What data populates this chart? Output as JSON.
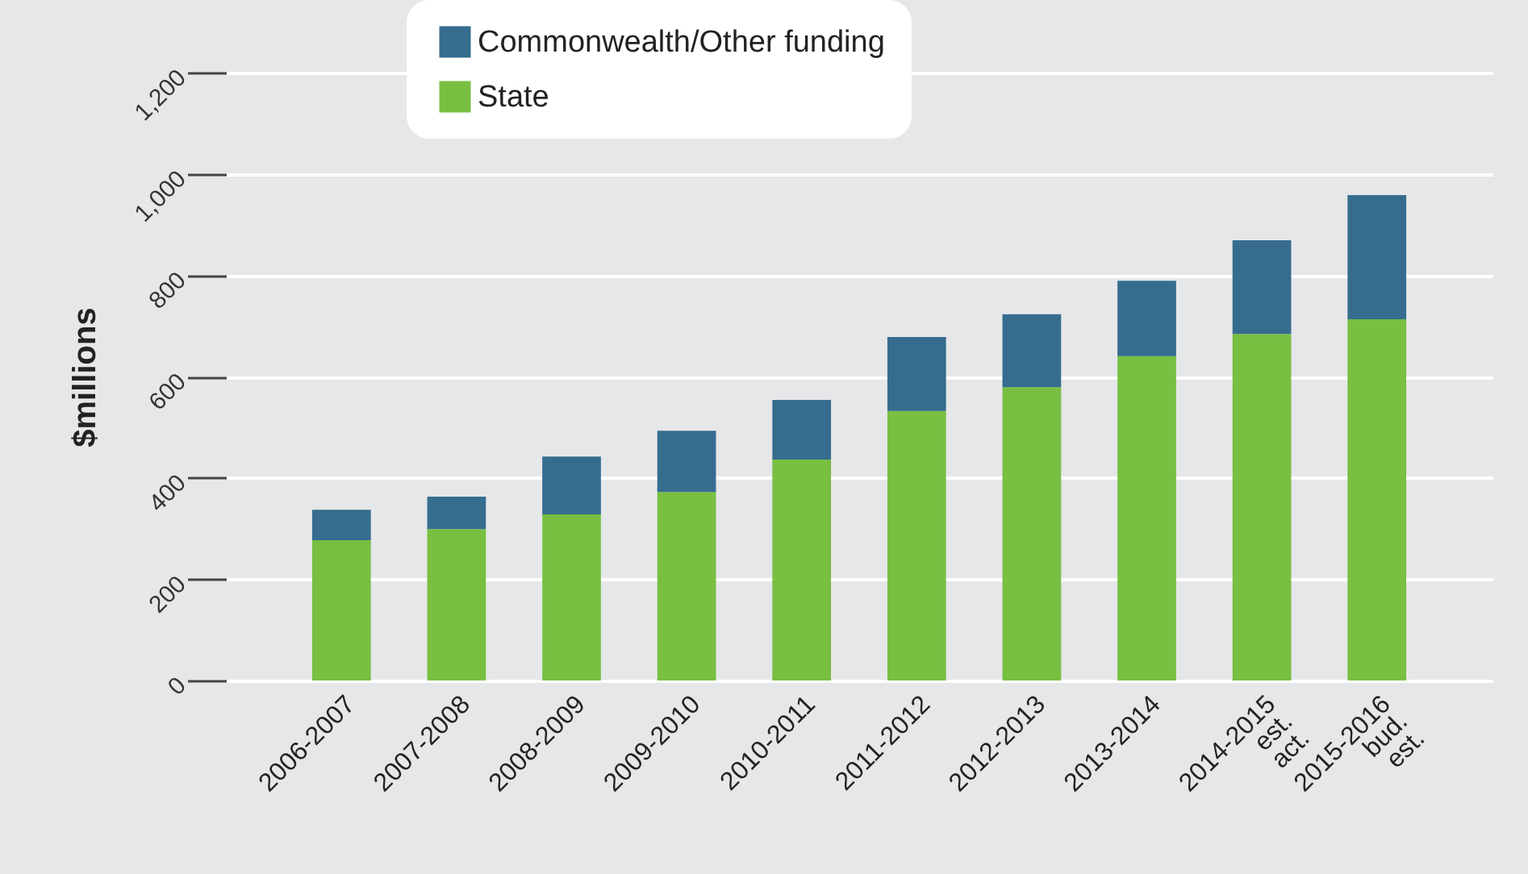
{
  "chart_data": {
    "type": "bar",
    "stacked": true,
    "ylabel": "$millions",
    "categories": [
      "2006-2007",
      "2007-2008",
      "2008-2009",
      "2009-2010",
      "2010-2011",
      "2011-2012",
      "2012-2013",
      "2013-2014",
      "2014-2015 est. act.",
      "2015-2016 bud. est."
    ],
    "series": [
      {
        "name": "State",
        "color": "#78bf42",
        "values": [
          277,
          299,
          328,
          372,
          436,
          532,
          579,
          640,
          684,
          713
        ]
      },
      {
        "name": "Commonwealth/Other funding",
        "color": "#366d8f",
        "values": [
          60,
          64,
          114,
          121,
          118,
          146,
          144,
          149,
          185,
          245
        ]
      }
    ],
    "ylim": [
      0,
      1200
    ],
    "yticks": [
      0,
      {
        "value": 200,
        "label": "200"
      },
      {
        "value": 400,
        "label": "400"
      },
      {
        "value": 600,
        "label": "600"
      },
      {
        "value": 800,
        "label": "800"
      },
      {
        "value": 1000,
        "label": "1,000"
      },
      {
        "value": 1200,
        "label": "1,200"
      }
    ],
    "grid": "y",
    "legend": "top left"
  }
}
